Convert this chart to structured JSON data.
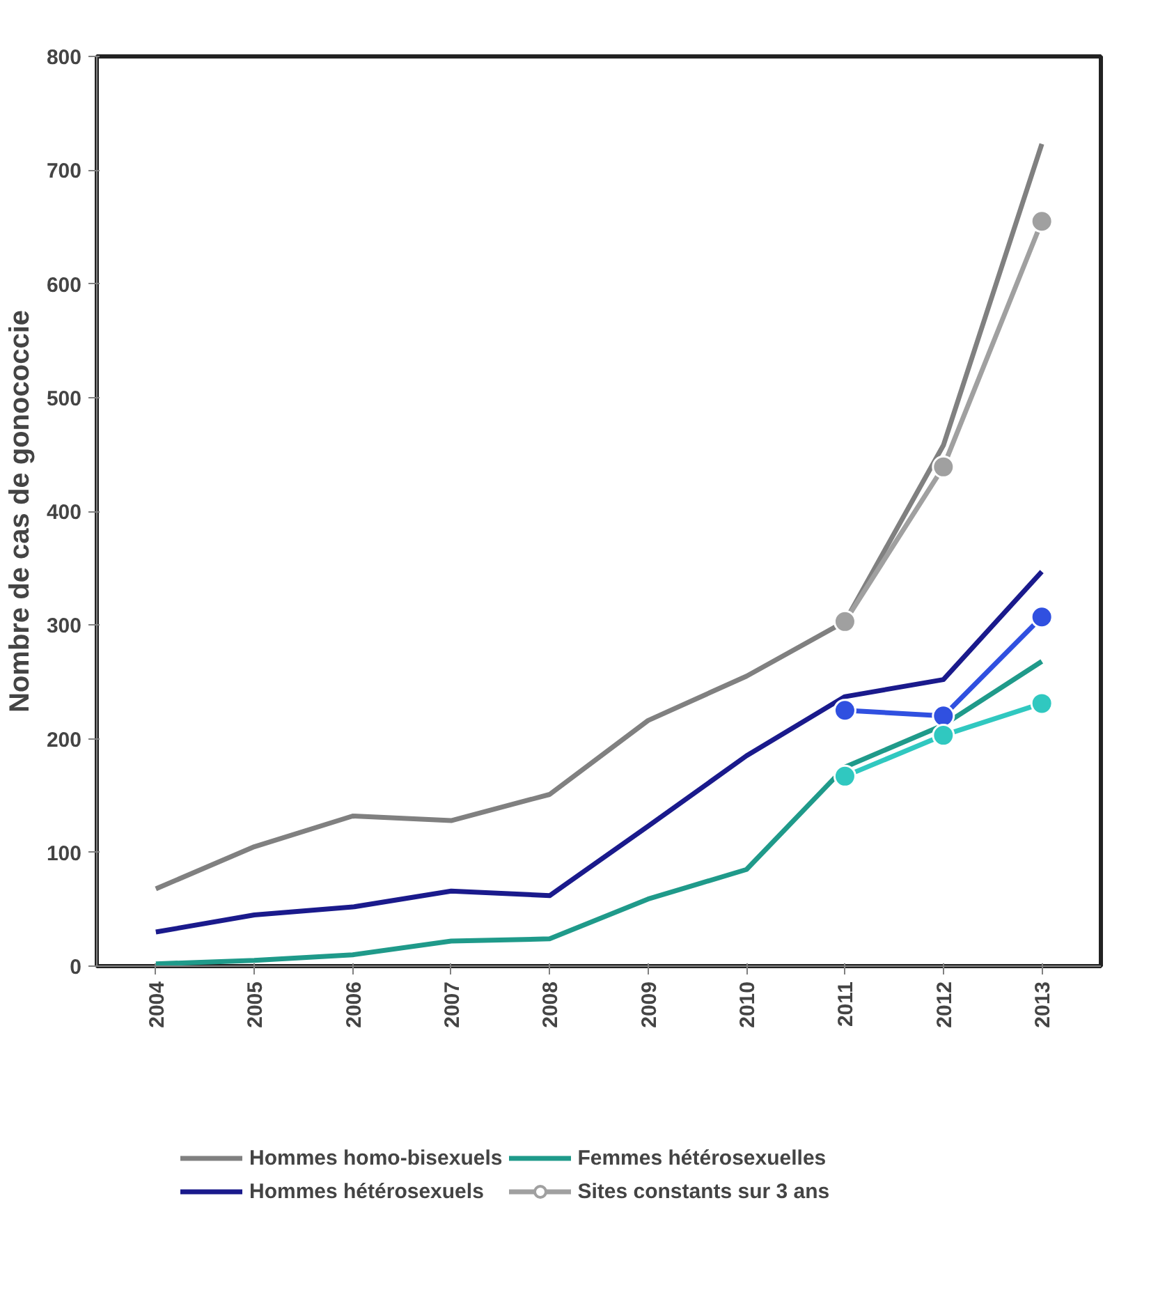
{
  "chart_data": {
    "type": "line",
    "ylabel": "Nombre de cas de gonococcie",
    "categories": [
      "2004",
      "2005",
      "2006",
      "2007",
      "2008",
      "2009",
      "2010",
      "2011",
      "2012",
      "2013"
    ],
    "ylim": [
      0,
      800
    ],
    "yticks": [
      0,
      100,
      200,
      300,
      400,
      500,
      600,
      700,
      800
    ],
    "grid": false,
    "legend": "bottom",
    "marker": "none",
    "line_style": "solid",
    "series": [
      {
        "name": "Hommes homo-bisexuels",
        "color": "#808080",
        "values": [
          68,
          105,
          132,
          128,
          151,
          216,
          255,
          303,
          458,
          723
        ]
      },
      {
        "name": "Hommes hétérosexuels",
        "color": "#1a1a8c",
        "values": [
          30,
          45,
          52,
          66,
          62,
          123,
          185,
          237,
          252,
          347
        ]
      },
      {
        "name": "Femmes hétérosexuelles",
        "color": "#1f9a8a",
        "values": [
          2,
          5,
          10,
          22,
          24,
          59,
          85,
          175,
          212,
          268
        ]
      },
      {
        "name": "Sites constants sur 3 ans",
        "color": "#a0a0a0",
        "marker": "circle",
        "values": [
          null,
          null,
          null,
          null,
          null,
          null,
          null,
          303,
          439,
          655
        ]
      },
      {
        "color": "#3050e0",
        "marker": "circle",
        "values": [
          null,
          null,
          null,
          null,
          null,
          null,
          null,
          225,
          220,
          307
        ]
      },
      {
        "color": "#30c8c0",
        "marker": "circle",
        "values": [
          null,
          null,
          null,
          null,
          null,
          null,
          null,
          167,
          203,
          231
        ]
      }
    ]
  }
}
